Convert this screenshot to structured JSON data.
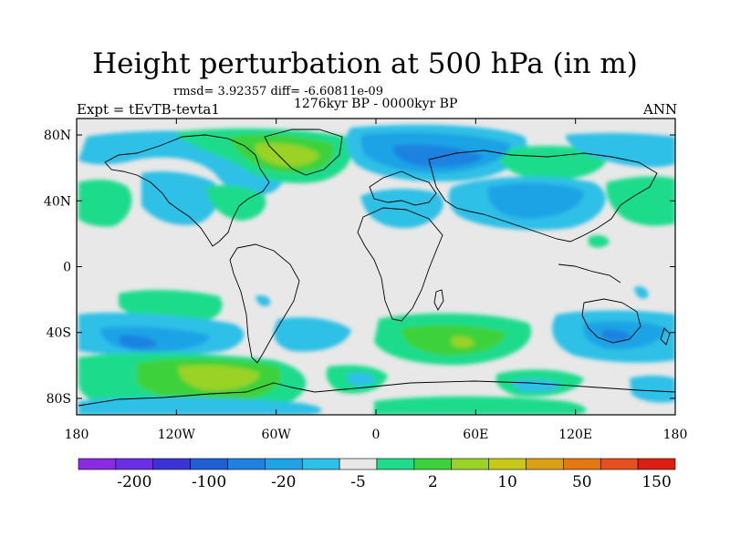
{
  "title": "Height perturbation at 500 hPa (in m)",
  "stats": "rmsd= 3.92357 diff= -6.60811e-09",
  "experiment": "Expt = tEvTB-tevta1",
  "period": "1276kyr BP - 0000kyr BP",
  "season": "ANN",
  "lat_ticks": [
    {
      "label": "80N",
      "lat": 80
    },
    {
      "label": "40N",
      "lat": 40
    },
    {
      "label": "0",
      "lat": 0
    },
    {
      "label": "40S",
      "lat": -40
    },
    {
      "label": "80S",
      "lat": -80
    }
  ],
  "lon_ticks": [
    {
      "label": "180",
      "lon": -180
    },
    {
      "label": "120W",
      "lon": -120
    },
    {
      "label": "60W",
      "lon": -60
    },
    {
      "label": "0",
      "lon": 0
    },
    {
      "label": "60E",
      "lon": 60
    },
    {
      "label": "120E",
      "lon": 120
    },
    {
      "label": "180",
      "lon": 180
    }
  ],
  "colorbar": {
    "colors": [
      "#8a2be2",
      "#6a2ee6",
      "#3a33d6",
      "#1f5fd6",
      "#1e82e0",
      "#1ea3e6",
      "#2ec0e6",
      "#e8e8e8",
      "#1fdc8c",
      "#3ed23a",
      "#9ad228",
      "#c8c819",
      "#dca014",
      "#e67814",
      "#e6501e",
      "#dc1e14"
    ],
    "labels": [
      {
        "text": "-200",
        "after_index": 1
      },
      {
        "text": "-100",
        "after_index": 3
      },
      {
        "text": "-20",
        "after_index": 5
      },
      {
        "text": "-5",
        "after_index": 7
      },
      {
        "text": "2",
        "after_index": 9
      },
      {
        "text": "10",
        "after_index": 11
      },
      {
        "text": "50",
        "after_index": 13
      },
      {
        "text": "150",
        "after_index": 15
      }
    ]
  }
}
